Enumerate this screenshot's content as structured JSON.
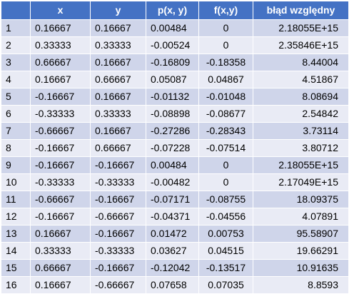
{
  "table": {
    "headers": [
      "",
      "x",
      "y",
      "p(x, y)",
      "f(x,y)",
      "błąd względny"
    ],
    "rows": [
      [
        "1",
        "0.16667",
        "0.16667",
        "0.00484",
        "0",
        "2.18055E+15"
      ],
      [
        "2",
        "0.33333",
        "0.33333",
        "-0.00524",
        "0",
        "2.35846E+15"
      ],
      [
        "3",
        "0.66667",
        "0.16667",
        "-0.16809",
        "-0.18358",
        "8.44004"
      ],
      [
        "4",
        "0.16667",
        "0.66667",
        "0.05087",
        "0.04867",
        "4.51867"
      ],
      [
        "5",
        "-0.16667",
        "0.16667",
        "-0.01132",
        "-0.01048",
        "8.08694"
      ],
      [
        "6",
        "-0.33333",
        "0.33333",
        "-0.08898",
        "-0.08677",
        "2.54842"
      ],
      [
        "7",
        "-0.66667",
        "0.16667",
        "-0.27286",
        "-0.28343",
        "3.73114"
      ],
      [
        "8",
        "-0.16667",
        "0.66667",
        "-0.07228",
        "-0.07514",
        "3.80712"
      ],
      [
        "9",
        "-0.16667",
        "-0.16667",
        "0.00484",
        "0",
        "2.18055E+15"
      ],
      [
        "10",
        "-0.33333",
        "-0.33333",
        "-0.00482",
        "0",
        "2.17049E+15"
      ],
      [
        "11",
        "-0.66667",
        "-0.16667",
        "-0.07171",
        "-0.08755",
        "18.09375"
      ],
      [
        "12",
        "-0.16667",
        "-0.66667",
        "-0.04371",
        "-0.04556",
        "4.07891"
      ],
      [
        "13",
        "0.16667",
        "-0.16667",
        "0.01472",
        "0.00753",
        "95.58907"
      ],
      [
        "14",
        "0.33333",
        "-0.33333",
        "0.03627",
        "0.04515",
        "19.66291"
      ],
      [
        "15",
        "0.66667",
        "-0.16667",
        "-0.12042",
        "-0.13517",
        "10.91635"
      ],
      [
        "16",
        "0.16667",
        "-0.66667",
        "0.07658",
        "0.07035",
        "8.8593"
      ]
    ]
  },
  "colors": {
    "header_bg": "#4472c4",
    "header_text": "#ffffff",
    "row_odd_bg": "#cfd5ea",
    "row_even_bg": "#e9ebf5"
  }
}
